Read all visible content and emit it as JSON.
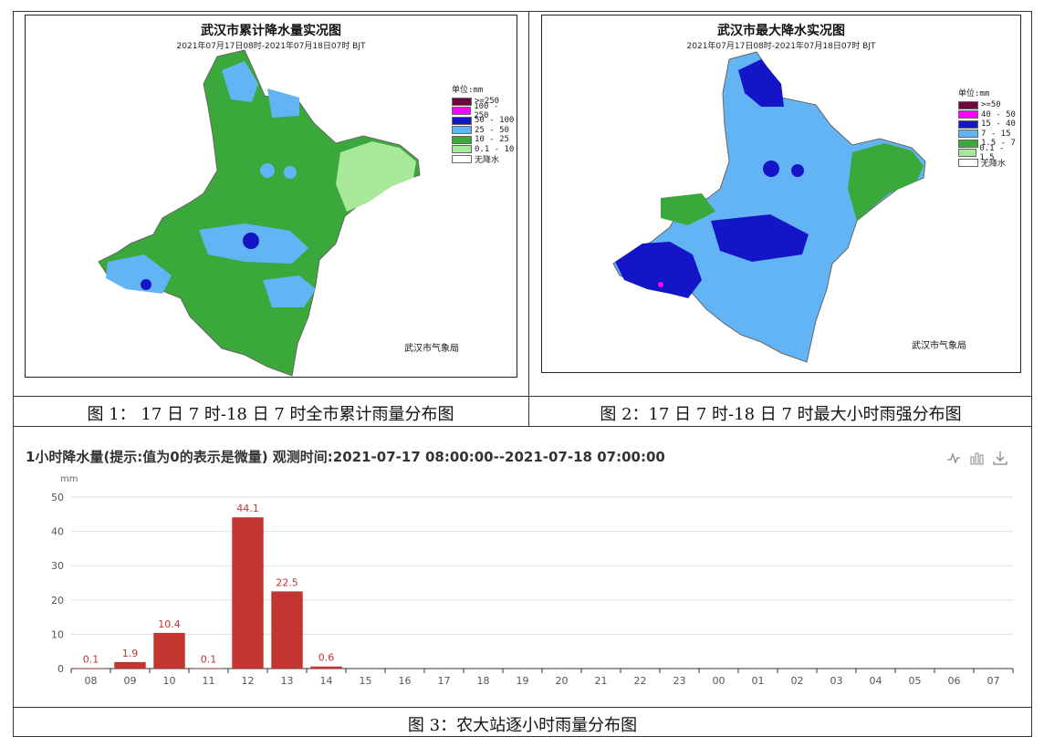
{
  "maps": [
    {
      "title": "武汉市累计降水量实况图",
      "subtitle": "2021年07月17日08时-2021年07月18日07时  BJT",
      "legend_unit": "单位:mm",
      "legend": [
        {
          "label": ">=250",
          "color": "#6b0a3d"
        },
        {
          "label": "100 - 250",
          "color": "#ff00ff"
        },
        {
          "label": "50 - 100",
          "color": "#1515c8"
        },
        {
          "label": "25 - 50",
          "color": "#62b4f4"
        },
        {
          "label": "10 - 25",
          "color": "#3aa83a"
        },
        {
          "label": "0.1 - 10",
          "color": "#a8e89a"
        },
        {
          "label": "无降水",
          "color": "#ffffff"
        }
      ],
      "agency": "武汉市气象局"
    },
    {
      "title": "武汉市最大降水实况图",
      "subtitle": "2021年07月17日08时-2021年07月18日07时  BJT",
      "legend_unit": "单位:mm",
      "legend": [
        {
          "label": ">=50",
          "color": "#6b0a3d"
        },
        {
          "label": "40 - 50",
          "color": "#ff00ff"
        },
        {
          "label": "15 - 40",
          "color": "#1515c8"
        },
        {
          "label": "7 - 15",
          "color": "#62b4f4"
        },
        {
          "label": "1.5 - 7",
          "color": "#3aa83a"
        },
        {
          "label": "0.1 - 1.5",
          "color": "#a8e89a"
        },
        {
          "label": "无降水",
          "color": "#ffffff"
        }
      ],
      "agency": "武汉市气象局"
    }
  ],
  "captions": {
    "fig1": "图 1： 17 日 7 时-18 日 7 时全市累计雨量分布图",
    "fig2": "图 2：17 日 7 时-18 日 7 时最大小时雨强分布图",
    "fig3": "图 3：农大站逐小时雨量分布图"
  },
  "toolbar": {
    "line_icon": "line-chart-icon",
    "bar_icon": "bar-chart-icon",
    "download_icon": "download-icon"
  },
  "chart_data": {
    "type": "bar",
    "title": "1小时降水量(提示:值为0的表示是微量)   观测时间:2021-07-17 08:00:00--2021-07-18 07:00:00",
    "ylabel": "mm",
    "ylim": [
      0,
      50
    ],
    "yticks": [
      0,
      10,
      20,
      30,
      40,
      50
    ],
    "grid": true,
    "bar_color": "#c23531",
    "categories": [
      "08",
      "09",
      "10",
      "11",
      "12",
      "13",
      "14",
      "15",
      "16",
      "17",
      "18",
      "19",
      "20",
      "21",
      "22",
      "23",
      "00",
      "01",
      "02",
      "03",
      "04",
      "05",
      "06",
      "07"
    ],
    "values": [
      0.1,
      1.9,
      10.4,
      0.1,
      44.1,
      22.5,
      0.6,
      null,
      null,
      null,
      null,
      null,
      null,
      null,
      null,
      null,
      null,
      null,
      null,
      null,
      null,
      null,
      null,
      null
    ],
    "data_labels": [
      "0.1",
      "1.9",
      "10.4",
      "0.1",
      "44.1",
      "22.5",
      "0.6",
      "",
      "",
      "",
      "",
      "",
      "",
      "",
      "",
      "",
      "",
      "",
      "",
      "",
      "",
      "",
      "",
      ""
    ]
  }
}
